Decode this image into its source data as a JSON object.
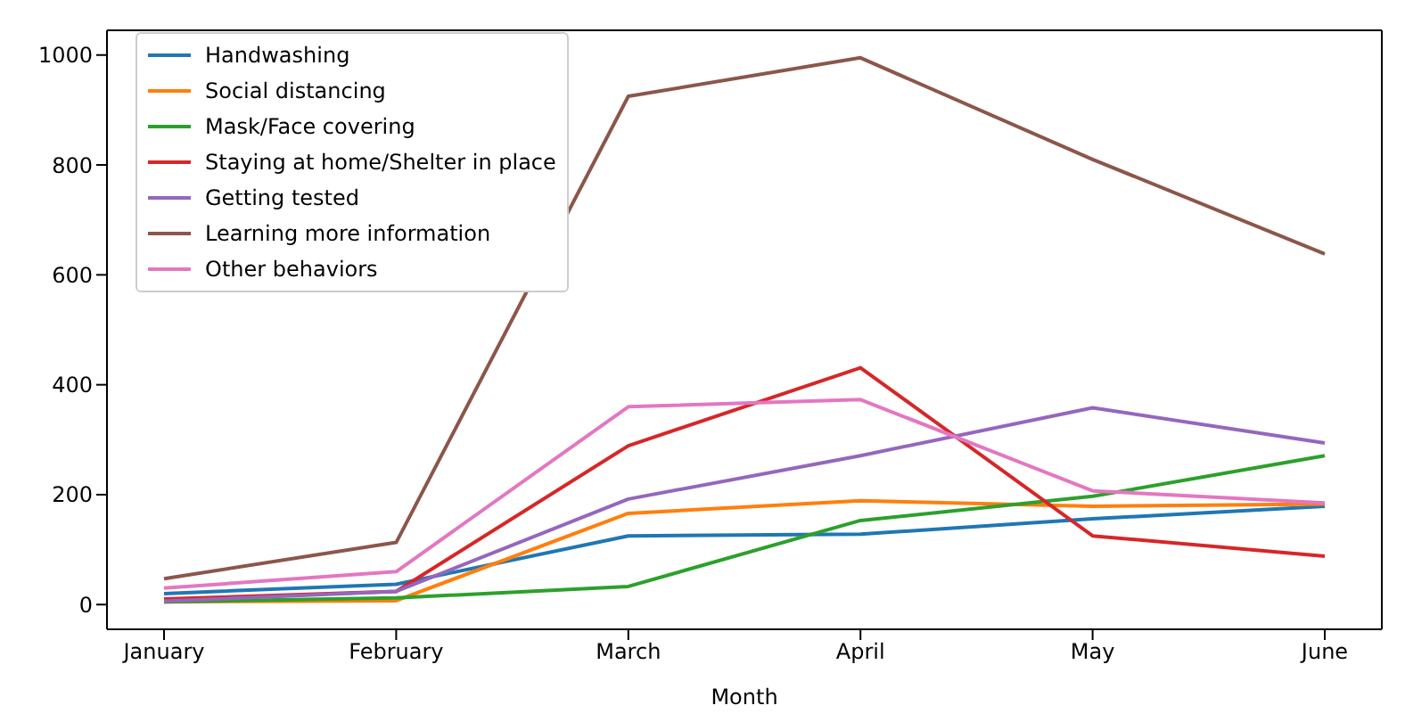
{
  "chart_data": {
    "type": "line",
    "xlabel": "Month",
    "categories": [
      "January",
      "February",
      "March",
      "April",
      "May",
      "June"
    ],
    "series": [
      {
        "name": "Handwashing",
        "color": "#1f77b4",
        "values": [
          20,
          37,
          125,
          128,
          156,
          179
        ]
      },
      {
        "name": "Social distancing",
        "color": "#ff7f0e",
        "values": [
          5,
          7,
          166,
          189,
          179,
          183
        ]
      },
      {
        "name": "Mask/Face covering",
        "color": "#2ca02c",
        "values": [
          5,
          12,
          33,
          153,
          197,
          271
        ]
      },
      {
        "name": "Staying at home/Shelter in place",
        "color": "#d62728",
        "values": [
          10,
          24,
          289,
          431,
          125,
          88
        ]
      },
      {
        "name": "Getting tested",
        "color": "#9467bd",
        "values": [
          6,
          24,
          192,
          271,
          358,
          294
        ]
      },
      {
        "name": "Learning more information",
        "color": "#8c564b",
        "values": [
          47,
          113,
          925,
          995,
          810,
          638
        ]
      },
      {
        "name": "Other behaviors",
        "color": "#e377c2",
        "values": [
          30,
          60,
          360,
          373,
          207,
          185
        ]
      }
    ],
    "ylim": [
      -45,
      1045
    ],
    "yticks": [
      0,
      200,
      400,
      600,
      800,
      1000
    ],
    "grid": false,
    "legend": "top left",
    "marker": "none",
    "line_style": "solid"
  }
}
